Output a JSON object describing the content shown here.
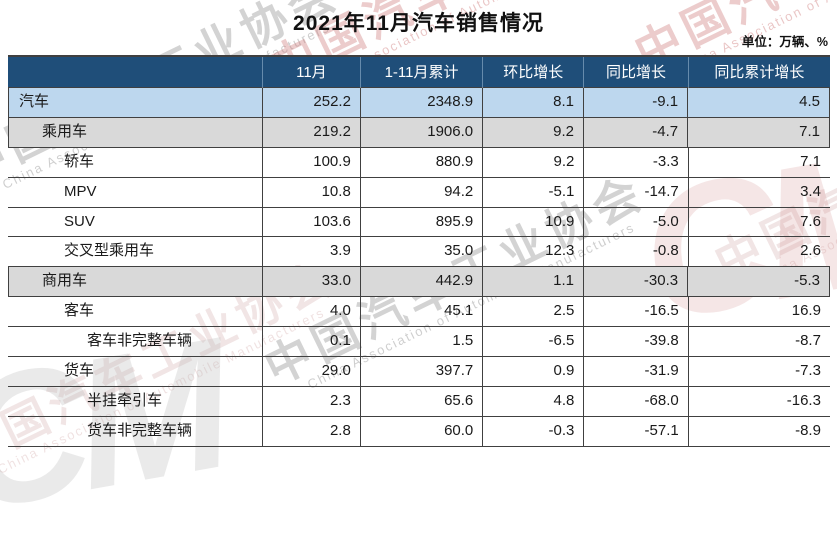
{
  "title": "2021年11月汽车销售情况",
  "unit_note": "单位：万辆、%",
  "watermark": {
    "cn": "中国汽车工业协会",
    "en": "China Association of Automobile Manufacturers",
    "logo": "CM"
  },
  "colors": {
    "header_bg": "#1F4E79",
    "header_text": "#FFFFFF",
    "row_highlight_blue": "#BDD7EE",
    "row_highlight_gray": "#D9D9D9",
    "border": "#404040"
  },
  "chart_data": {
    "type": "table",
    "title": "2021年11月汽车销售情况",
    "unit": "万辆、%",
    "columns": [
      "",
      "11月",
      "1-11月累计",
      "环比增长",
      "同比增长",
      "同比累计增长"
    ],
    "rows": [
      {
        "label": "汽车",
        "indent": 0,
        "style": "blue",
        "values": [
          "252.2",
          "2348.9",
          "8.1",
          "-9.1",
          "4.5"
        ]
      },
      {
        "label": "乘用车",
        "indent": 1,
        "style": "gray",
        "values": [
          "219.2",
          "1906.0",
          "9.2",
          "-4.7",
          "7.1"
        ]
      },
      {
        "label": "轿车",
        "indent": 2,
        "style": "white",
        "values": [
          "100.9",
          "880.9",
          "9.2",
          "-3.3",
          "7.1"
        ]
      },
      {
        "label": "MPV",
        "indent": 2,
        "style": "white",
        "values": [
          "10.8",
          "94.2",
          "-5.1",
          "-14.7",
          "3.4"
        ]
      },
      {
        "label": "SUV",
        "indent": 2,
        "style": "white",
        "values": [
          "103.6",
          "895.9",
          "10.9",
          "-5.0",
          "7.6"
        ]
      },
      {
        "label": "交叉型乘用车",
        "indent": 2,
        "style": "white",
        "values": [
          "3.9",
          "35.0",
          "12.3",
          "-0.8",
          "2.6"
        ]
      },
      {
        "label": "商用车",
        "indent": 1,
        "style": "gray",
        "values": [
          "33.0",
          "442.9",
          "1.1",
          "-30.3",
          "-5.3"
        ]
      },
      {
        "label": "客车",
        "indent": 2,
        "style": "white",
        "values": [
          "4.0",
          "45.1",
          "2.5",
          "-16.5",
          "16.9"
        ]
      },
      {
        "label": "客车非完整车辆",
        "indent": 3,
        "style": "white",
        "values": [
          "0.1",
          "1.5",
          "-6.5",
          "-39.8",
          "-8.7"
        ]
      },
      {
        "label": "货车",
        "indent": 2,
        "style": "white",
        "values": [
          "29.0",
          "397.7",
          "0.9",
          "-31.9",
          "-7.3"
        ]
      },
      {
        "label": "半挂牵引车",
        "indent": 3,
        "style": "white",
        "values": [
          "2.3",
          "65.6",
          "4.8",
          "-68.0",
          "-16.3"
        ]
      },
      {
        "label": "货车非完整车辆",
        "indent": 3,
        "style": "white",
        "values": [
          "2.8",
          "60.0",
          "-0.3",
          "-57.1",
          "-8.9"
        ]
      }
    ]
  }
}
